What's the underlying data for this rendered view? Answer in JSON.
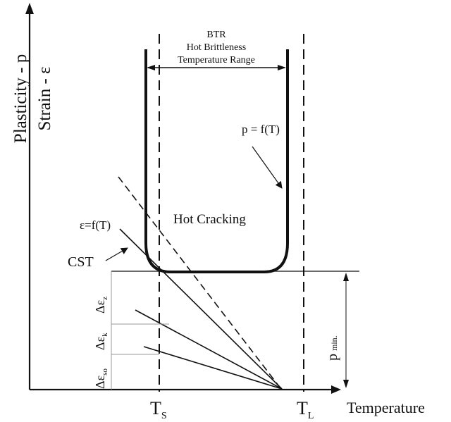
{
  "diagram": {
    "y_axis_label_1": "Plasticity - p",
    "y_axis_label_2": "Strain - ε",
    "x_axis_label": "Temperature",
    "btr_line1": "BTR",
    "btr_line2": "Hot Brittleness",
    "btr_line3": "Temperature Range",
    "plasticity_curve_label": "p = f(T)",
    "hot_cracking_label": "Hot Cracking",
    "strain_label": "ε=f(T)",
    "cst_label": "CST",
    "ts_main": "T",
    "ts_sub": "S",
    "tl_main": "T",
    "tl_sub": "L",
    "pmin_main": "p",
    "pmin_sub": "min.",
    "delta_eps_z_main": "Δε",
    "delta_eps_z_sub": "z",
    "delta_eps_k_main": "Δε",
    "delta_eps_k_sub": "k",
    "delta_eps_so_main": "Δε",
    "delta_eps_so_sub": "so"
  }
}
